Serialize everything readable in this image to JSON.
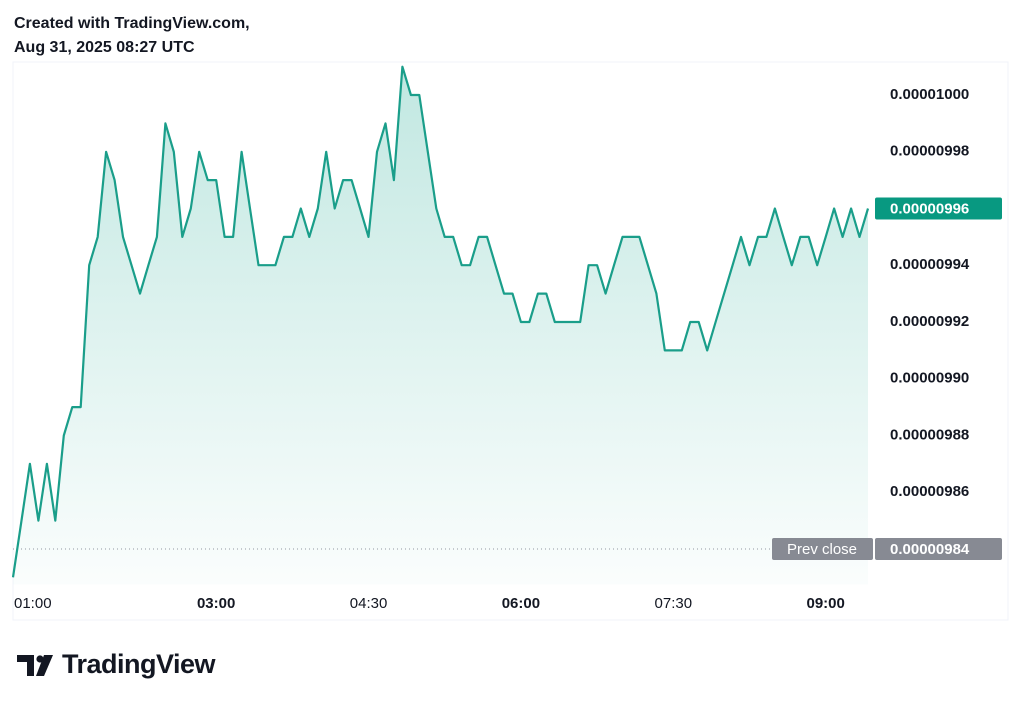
{
  "header": {
    "line1": "Created with TradingView.com,",
    "line2": "Aug 31, 2025 08:27 UTC"
  },
  "footer": {
    "brand": "TradingView"
  },
  "chart_data": {
    "type": "area",
    "color": "#1a9e8a",
    "x": [
      "01:00",
      "01:05",
      "01:10",
      "01:15",
      "01:20",
      "01:25",
      "01:30",
      "01:35",
      "01:40",
      "01:45",
      "01:50",
      "01:55",
      "02:00",
      "02:05",
      "02:10",
      "02:15",
      "02:20",
      "02:25",
      "02:30",
      "02:35",
      "02:40",
      "02:45",
      "02:50",
      "02:55",
      "03:00",
      "03:05",
      "03:10",
      "03:15",
      "03:20",
      "03:25",
      "03:30",
      "03:35",
      "03:40",
      "03:45",
      "03:50",
      "03:55",
      "04:00",
      "04:05",
      "04:10",
      "04:15",
      "04:20",
      "04:25",
      "04:30",
      "04:35",
      "04:40",
      "04:45",
      "04:50",
      "04:55",
      "05:00",
      "05:05",
      "05:10",
      "05:15",
      "05:20",
      "05:25",
      "05:30",
      "05:35",
      "05:40",
      "05:45",
      "05:50",
      "05:55",
      "06:00",
      "06:05",
      "06:10",
      "06:15",
      "06:20",
      "06:25",
      "06:30",
      "06:35",
      "06:40",
      "06:45",
      "06:50",
      "06:55",
      "07:00",
      "07:05",
      "07:10",
      "07:15",
      "07:20",
      "07:25",
      "07:30",
      "07:35",
      "07:40",
      "07:45",
      "07:50",
      "07:55",
      "08:00",
      "08:05",
      "08:10",
      "08:15",
      "08:20",
      "08:25",
      "08:30",
      "08:35",
      "08:40",
      "08:45",
      "08:50",
      "08:55",
      "09:00",
      "09:05",
      "09:10",
      "09:15",
      "09:20",
      "09:25"
    ],
    "values": [
      9.83e-06,
      9.85e-06,
      9.87e-06,
      9.85e-06,
      9.87e-06,
      9.85e-06,
      9.88e-06,
      9.89e-06,
      9.89e-06,
      9.94e-06,
      9.95e-06,
      9.98e-06,
      9.97e-06,
      9.95e-06,
      9.94e-06,
      9.93e-06,
      9.94e-06,
      9.95e-06,
      9.99e-06,
      9.98e-06,
      9.95e-06,
      9.96e-06,
      9.98e-06,
      9.97e-06,
      9.97e-06,
      9.95e-06,
      9.95e-06,
      9.98e-06,
      9.96e-06,
      9.94e-06,
      9.94e-06,
      9.94e-06,
      9.95e-06,
      9.95e-06,
      9.96e-06,
      9.95e-06,
      9.96e-06,
      9.98e-06,
      9.96e-06,
      9.97e-06,
      9.97e-06,
      9.96e-06,
      9.95e-06,
      9.98e-06,
      9.99e-06,
      9.97e-06,
      1.001e-05,
      1e-05,
      1e-05,
      9.98e-06,
      9.96e-06,
      9.95e-06,
      9.95e-06,
      9.94e-06,
      9.94e-06,
      9.95e-06,
      9.95e-06,
      9.94e-06,
      9.93e-06,
      9.93e-06,
      9.92e-06,
      9.92e-06,
      9.93e-06,
      9.93e-06,
      9.92e-06,
      9.92e-06,
      9.92e-06,
      9.92e-06,
      9.94e-06,
      9.94e-06,
      9.93e-06,
      9.94e-06,
      9.95e-06,
      9.95e-06,
      9.95e-06,
      9.94e-06,
      9.93e-06,
      9.91e-06,
      9.91e-06,
      9.91e-06,
      9.92e-06,
      9.92e-06,
      9.91e-06,
      9.92e-06,
      9.93e-06,
      9.94e-06,
      9.95e-06,
      9.94e-06,
      9.95e-06,
      9.95e-06,
      9.96e-06,
      9.95e-06,
      9.94e-06,
      9.95e-06,
      9.95e-06,
      9.94e-06,
      9.95e-06,
      9.96e-06,
      9.95e-06,
      9.96e-06,
      9.95e-06,
      9.96e-06
    ],
    "xlim": [
      "01:00",
      "09:25"
    ],
    "xticks": [
      "01:00",
      "03:00",
      "04:30",
      "06:00",
      "07:30",
      "09:00"
    ],
    "ylim": [
      9.8275e-06,
      1.00115e-05
    ],
    "yticks": [
      {
        "value": 9.86e-06,
        "label": "0.00000986"
      },
      {
        "value": 9.88e-06,
        "label": "0.00000988"
      },
      {
        "value": 9.9e-06,
        "label": "0.00000990"
      },
      {
        "value": 9.92e-06,
        "label": "0.00000992"
      },
      {
        "value": 9.94e-06,
        "label": "0.00000994"
      },
      {
        "value": 9.96e-06,
        "label": "0.00000996"
      },
      {
        "value": 9.98e-06,
        "label": "0.00000998"
      },
      {
        "value": 1e-05,
        "label": "0.00001000"
      }
    ],
    "last_price": {
      "value": 9.96e-06,
      "label": "0.00000996"
    },
    "prev_close": {
      "title": "Prev close",
      "value": 9.84e-06,
      "label": "0.00000984"
    }
  }
}
